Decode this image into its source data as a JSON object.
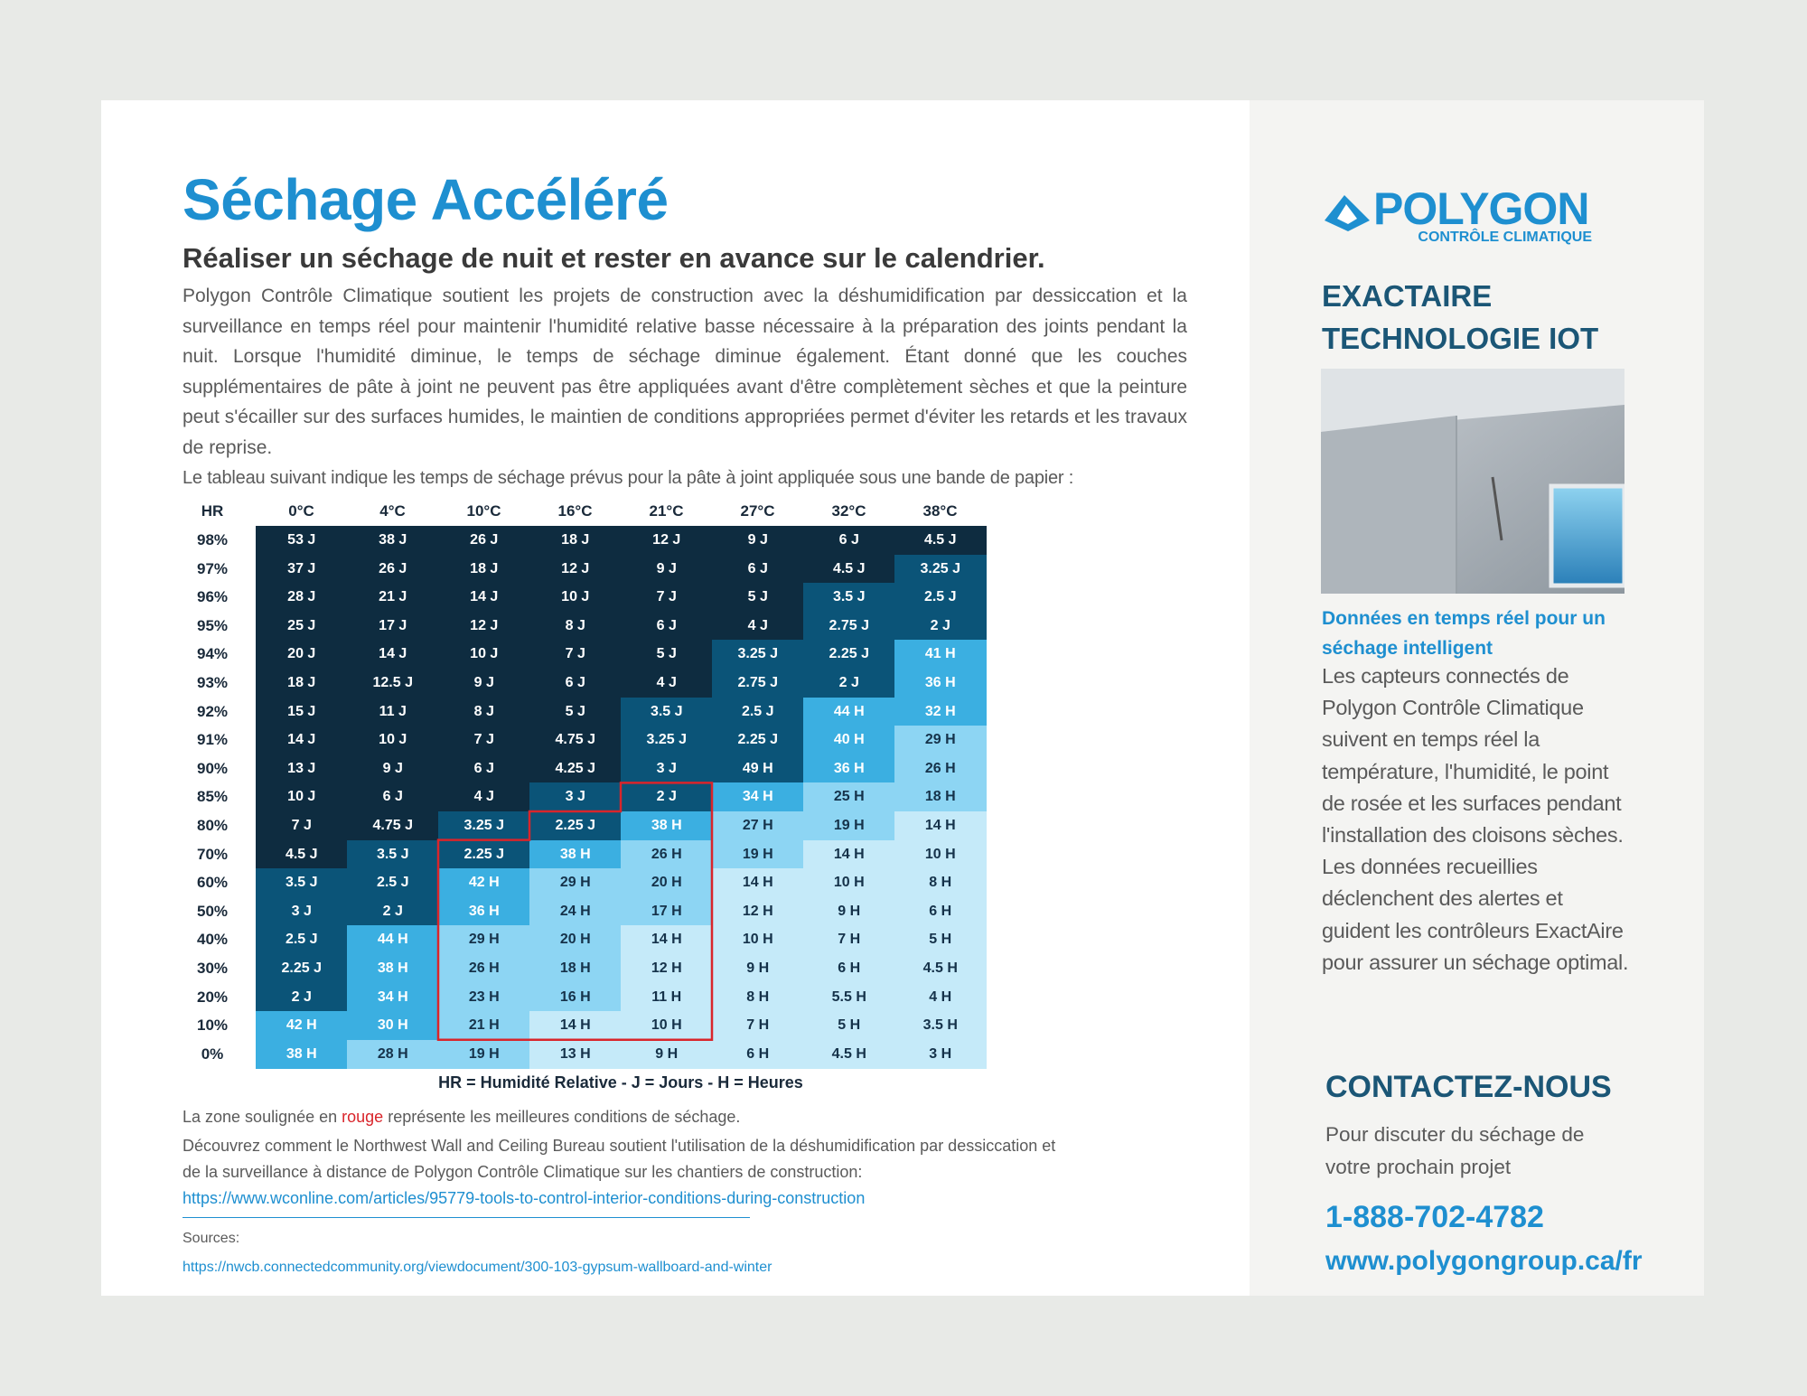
{
  "header": {
    "title": "Séchage Accéléré",
    "subtitle": "Réaliser un séchage de nuit et rester en avance sur le calendrier."
  },
  "intro": "Polygon Contrôle Climatique soutient les projets de construction avec la déshumidification par dessiccation et la surveillance en temps réel pour maintenir l'humidité relative basse nécessaire à la préparation des joints pendant la nuit. Lorsque l'humidité diminue, le temps de séchage diminue également. Étant donné que les couches supplémentaires de pâte à joint ne peuvent pas être appliquées avant d'être complètement sèches et que la peinture peut s'écailler sur des surfaces humides, le maintien de conditions appropriées permet d'éviter les retards et les travaux de reprise.",
  "table_intro": "Le tableau suivant indique les temps de séchage prévus pour la pâte à joint appliquée sous une bande de papier :",
  "table": {
    "columns": [
      "HR",
      "0°C",
      "4°C",
      "10°C",
      "16°C",
      "21°C",
      "27°C",
      "32°C",
      "38°C"
    ],
    "rows": [
      [
        "98%",
        "53 J",
        "38 J",
        "26 J",
        "18 J",
        "12 J",
        "9 J",
        "6 J",
        "4.5 J"
      ],
      [
        "97%",
        "37 J",
        "26 J",
        "18 J",
        "12 J",
        "9 J",
        "6 J",
        "4.5 J",
        "3.25 J"
      ],
      [
        "96%",
        "28 J",
        "21 J",
        "14 J",
        "10 J",
        "7 J",
        "5 J",
        "3.5 J",
        "2.5 J"
      ],
      [
        "95%",
        "25 J",
        "17 J",
        "12 J",
        "8 J",
        "6 J",
        "4 J",
        "2.75 J",
        "2 J"
      ],
      [
        "94%",
        "20 J",
        "14 J",
        "10 J",
        "7 J",
        "5 J",
        "3.25 J",
        "2.25 J",
        "41 H"
      ],
      [
        "93%",
        "18 J",
        "12.5 J",
        "9 J",
        "6 J",
        "4 J",
        "2.75 J",
        "2 J",
        "36 H"
      ],
      [
        "92%",
        "15 J",
        "11 J",
        "8 J",
        "5 J",
        "3.5 J",
        "2.5 J",
        "44 H",
        "32 H"
      ],
      [
        "91%",
        "14 J",
        "10 J",
        "7 J",
        "4.75 J",
        "3.25 J",
        "2.25 J",
        "40 H",
        "29 H"
      ],
      [
        "90%",
        "13 J",
        "9 J",
        "6 J",
        "4.25 J",
        "3 J",
        "49 H",
        "36 H",
        "26 H"
      ],
      [
        "85%",
        "10 J",
        "6 J",
        "4 J",
        "3 J",
        "2 J",
        "34 H",
        "25 H",
        "18 H"
      ],
      [
        "80%",
        "7 J",
        "4.75 J",
        "3.25 J",
        "2.25 J",
        "38 H",
        "27 H",
        "19 H",
        "14 H"
      ],
      [
        "70%",
        "4.5 J",
        "3.5 J",
        "2.25 J",
        "38 H",
        "26 H",
        "19 H",
        "14 H",
        "10 H"
      ],
      [
        "60%",
        "3.5 J",
        "2.5 J",
        "42 H",
        "29 H",
        "20 H",
        "14 H",
        "10 H",
        "8 H"
      ],
      [
        "50%",
        "3 J",
        "2 J",
        "36 H",
        "24 H",
        "17 H",
        "12 H",
        "9 H",
        "6 H"
      ],
      [
        "40%",
        "2.5 J",
        "44 H",
        "29 H",
        "20 H",
        "14 H",
        "10 H",
        "7 H",
        "5 H"
      ],
      [
        "30%",
        "2.25 J",
        "38 H",
        "26 H",
        "18 H",
        "12 H",
        "9 H",
        "6 H",
        "4.5 H"
      ],
      [
        "20%",
        "2 J",
        "34 H",
        "23 H",
        "16 H",
        "11 H",
        "8 H",
        "5.5 H",
        "4 H"
      ],
      [
        "10%",
        "42 H",
        "30 H",
        "21 H",
        "14 H",
        "10 H",
        "7 H",
        "5 H",
        "3.5 H"
      ],
      [
        "0%",
        "38 H",
        "28 H",
        "19 H",
        "13 H",
        "9 H",
        "6 H",
        "4.5 H",
        "3 H"
      ]
    ],
    "legend": "HR = Humidité Relative - J = Jours - H = Heures"
  },
  "notes": {
    "highlight": [
      "La zone soulignée en ",
      "rouge",
      " représente les meilleures conditions de séchage."
    ],
    "discover": [
      "Découvrez comment le Northwest Wall and Ceiling Bureau soutient l'utilisation de la déshumidification par dessiccation et",
      "de la surveillance à distance de Polygon Contrôle Climatique sur les chantiers de construction:"
    ],
    "link": "https://www.wconline.com/articles/95779-tools-to-control-interior-conditions-during-construction",
    "sources_label": "Sources:",
    "sources_link": "https://nwcb.connectedcommunity.org/viewdocument/300-103-gypsum-wallboard-and-winter"
  },
  "sidebar": {
    "logo_name": "POLYGON",
    "logo_tagline": "CONTRÔLE CLIMATIQUE",
    "heading": [
      "EXACTAIRE",
      "TECHNOLOGIE IOT"
    ],
    "feature_title": "Données en temps réel pour un séchage intelligent",
    "feature_text": "Les capteurs connectés de Polygon Contrôle Climatique suivent en temps réel la température, l'humidité, le point de rosée et les surfaces pendant l'installation des cloisons sèches. Les données recueillies déclenchent des alertes et guident les contrôleurs ExactAire pour assurer un séchage optimal.",
    "contact_title": "CONTACTEZ-NOUS",
    "contact_text": "Pour discuter du séchage de votre prochain projet",
    "phone": "1-888-702-4782",
    "website": "www.polygongroup.ca/fr"
  }
}
